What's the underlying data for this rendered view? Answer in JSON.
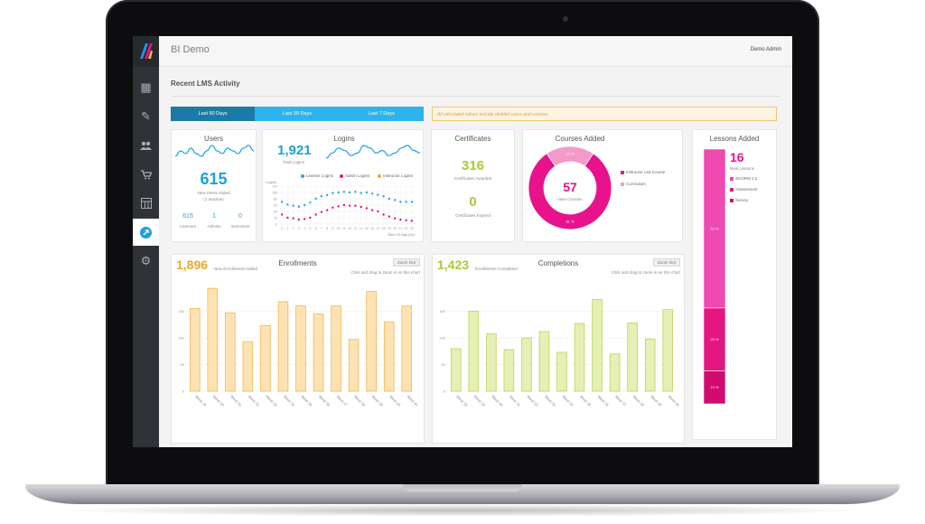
{
  "app": {
    "title": "BI Demo",
    "user": "Demo Admin"
  },
  "sidebar": {
    "items": [
      {
        "name": "dashboard-icon",
        "glyph": "▦"
      },
      {
        "name": "edit-icon",
        "glyph": "✎"
      },
      {
        "name": "users-icon",
        "glyph": "👥"
      },
      {
        "name": "cart-icon",
        "glyph": "🛒"
      },
      {
        "name": "table-icon",
        "glyph": "▤"
      },
      {
        "name": "rocket-icon",
        "glyph": "➚"
      },
      {
        "name": "gear-icon",
        "glyph": "⚙"
      }
    ]
  },
  "section": {
    "title": "Recent LMS Activity"
  },
  "tabs": [
    "Last 90 Days",
    "Last 30 Days",
    "Last 7 Days"
  ],
  "notice": "All calculated values include deleted users and courses",
  "users": {
    "title": "Users",
    "total": "615",
    "total_label": "New Users Added",
    "inactive": "(1 Inactive)",
    "learners": "615",
    "learners_label": "Learners",
    "admins": "1",
    "admins_label": "Admins",
    "instructors": "0",
    "instructors_label": "Instructors"
  },
  "logins": {
    "title": "Logins",
    "total": "1,921",
    "total_label": "Total Logins",
    "legend": [
      "Learner Logins",
      "Admin Logins",
      "Instructor Logins"
    ],
    "ylabel": "Logins",
    "xlabel": "Time Of Day (Hr)"
  },
  "certificates": {
    "title": "Certificates",
    "awarded": "316",
    "awarded_label": "Certificates Awarded",
    "expired": "0",
    "expired_label": "Certificates Expired"
  },
  "courses": {
    "title": "Courses Added",
    "total": "57",
    "total_label": "New Courses",
    "legend": [
      "Instructor Led Course",
      "Curriculum"
    ]
  },
  "lessons": {
    "title": "Lessons Added",
    "total": "16",
    "total_label": "New Lessons",
    "legend": [
      "SCORM 1.2",
      "Assessment",
      "Survey"
    ]
  },
  "enrollments": {
    "title": "Enrollments",
    "total": "1,896",
    "total_label": "New Enrollments Added",
    "zoom_label": "Zoom Out",
    "hint": "Click and drag to zoom in on this chart"
  },
  "completions": {
    "title": "Completions",
    "total": "1,423",
    "total_label": "Enrollments Completed",
    "zoom_label": "Zoom Out",
    "hint": "Click and drag to zoom in on this chart"
  },
  "colors": {
    "blue": "#1da0df",
    "magenta": "#e8128c",
    "pink": "#f49ac8",
    "orange": "#f2a62b",
    "olive": "#a9c93c",
    "learner": "#2aa6df",
    "admin": "#e4157f",
    "instructor": "#f4a62a"
  },
  "chart_data": [
    {
      "id": "users-sparkline",
      "type": "line",
      "values": [
        5,
        7,
        6,
        8,
        6,
        5,
        7,
        9,
        7,
        6,
        8,
        7,
        6,
        8,
        9,
        7
      ]
    },
    {
      "id": "logins-sparkline",
      "type": "line",
      "values": [
        4,
        6,
        8,
        7,
        5,
        6,
        9,
        8,
        6,
        7,
        5,
        6,
        8,
        9,
        7,
        6
      ]
    },
    {
      "id": "logins-by-hour",
      "type": "scatter",
      "x": [
        0,
        1,
        2,
        3,
        4,
        5,
        6,
        7,
        8,
        9,
        10,
        11,
        12,
        13,
        14,
        15,
        16,
        17,
        18,
        19,
        20,
        21,
        22,
        23
      ],
      "series": [
        {
          "name": "Learner Logins",
          "values": [
            70,
            62,
            58,
            55,
            60,
            68,
            80,
            88,
            92,
            98,
            100,
            102,
            100,
            102,
            98,
            100,
            96,
            92,
            88,
            80,
            76,
            70,
            70,
            70
          ]
        },
        {
          "name": "Admin Logins",
          "values": [
            30,
            20,
            18,
            14,
            16,
            20,
            30,
            38,
            44,
            52,
            56,
            60,
            58,
            58,
            54,
            50,
            44,
            40,
            30,
            24,
            18,
            14,
            12,
            10
          ]
        },
        {
          "name": "Instructor Logins",
          "values": [
            null,
            null,
            null,
            null,
            null,
            null,
            null,
            null,
            null,
            null,
            null,
            null,
            null,
            null,
            null,
            null,
            null,
            null,
            null,
            null,
            null,
            null,
            null,
            null
          ]
        }
      ],
      "xlabel": "Time Of Day (Hr)",
      "ylabel": "Logins",
      "legend": "top"
    },
    {
      "id": "courses-added",
      "type": "pie",
      "categories": [
        "Instructor Led Course",
        "Curriculum"
      ],
      "values": [
        81,
        19
      ],
      "labels": [
        "81 %",
        "19 %"
      ]
    },
    {
      "id": "lessons-added",
      "type": "bar",
      "stacked": true,
      "categories": [
        "SCORM 1.2",
        "Assessment",
        "Survey"
      ],
      "values": [
        63,
        25,
        13
      ],
      "labels": [
        "63 %",
        "25 %",
        "13 %"
      ]
    },
    {
      "id": "enrollments",
      "type": "bar",
      "categories": [
        "Week 29",
        "Week 30",
        "Week 31",
        "Week 32",
        "Week 33",
        "Week 34",
        "Week 35",
        "Week 36",
        "Week 37",
        "Week 38",
        "Week 39",
        "Week 40",
        "Week 41"
      ],
      "values": [
        155,
        193,
        147,
        93,
        123,
        168,
        160,
        145,
        160,
        97,
        187,
        130,
        160
      ],
      "ylim": [
        0,
        200
      ],
      "yticks": [
        0,
        50,
        100,
        150
      ]
    },
    {
      "id": "completions",
      "type": "bar",
      "categories": [
        "Week 28",
        "Week 29",
        "Week 30",
        "Week 31",
        "Week 32",
        "Week 33",
        "Week 34",
        "Week 35",
        "Week 36",
        "Week 37",
        "Week 38",
        "Week 39",
        "Week 40"
      ],
      "values": [
        80,
        150,
        108,
        78,
        100,
        112,
        73,
        127,
        172,
        70,
        128,
        98,
        153
      ],
      "ylim": [
        0,
        200
      ],
      "yticks": [
        0,
        50,
        100,
        150
      ]
    }
  ]
}
